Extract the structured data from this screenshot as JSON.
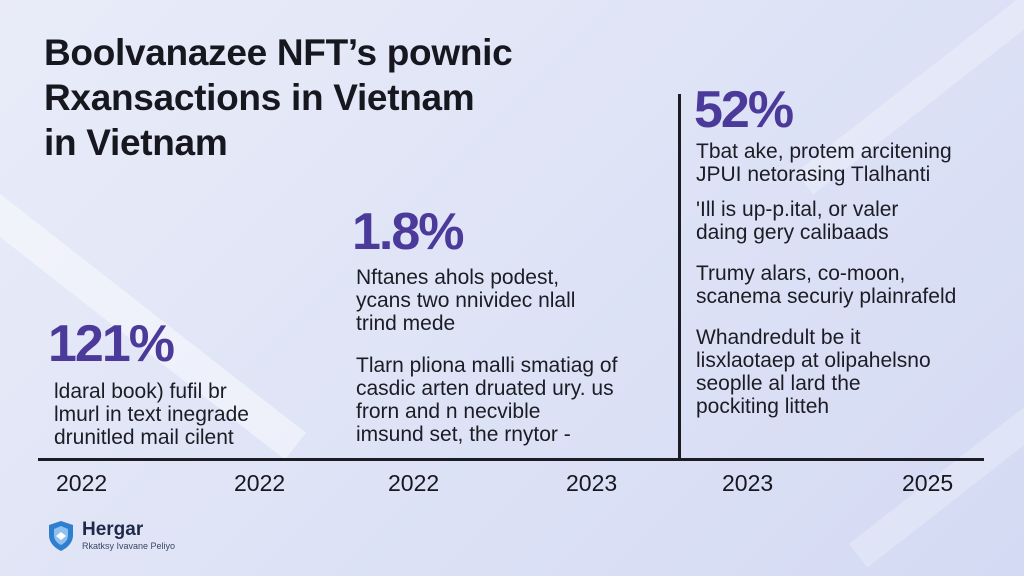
{
  "title": {
    "line1": "Boolvanazee NFT’s pownic",
    "line2": "Rxansactions in Vietnam",
    "line3": "in Vietnam"
  },
  "stats": {
    "stat1": "121%",
    "stat2": "1.8%",
    "stat3": "52%"
  },
  "paragraphs": {
    "p1": [
      "ldaral book) fufil br",
      "lmurl in text inegrade",
      "drunitled mail cilent"
    ],
    "p2": [
      "Nftanes ahols podest,",
      "ycans two nnividec nlall",
      "trind mede"
    ],
    "p3": [
      "Tlarn pliona malli smatiag of",
      "casdic arten druated ury. us",
      "frorn and n necvible",
      "imsund set, the rnytor -"
    ],
    "p4": [
      "Tbat ake, protem arcitening",
      "JPUI netorasing Tlalhanti"
    ],
    "p5": [
      "'Ill is up-p.ital, or valer",
      "daing gery calibaads"
    ],
    "p6": [
      "Trumy alars, co-moon,",
      "scanema securiy plainrafeld"
    ],
    "p7": [
      "Whandredult be it",
      "lisxlaotaep at olipahelsno",
      "seoplle al lard the",
      "pockiting litteh"
    ]
  },
  "timeline": {
    "years": [
      "2022",
      "2022",
      "2022",
      "2023",
      "2023",
      "2025"
    ]
  },
  "brand": {
    "name": "Hergar",
    "tagline": "Rkatksy Ivavane Peliyo",
    "icon": "shield-icon"
  },
  "colors": {
    "accent": "#4b3a9a",
    "text": "#17171f",
    "brand_blue": "#2f7fd0",
    "background": "#e4e8f7"
  }
}
